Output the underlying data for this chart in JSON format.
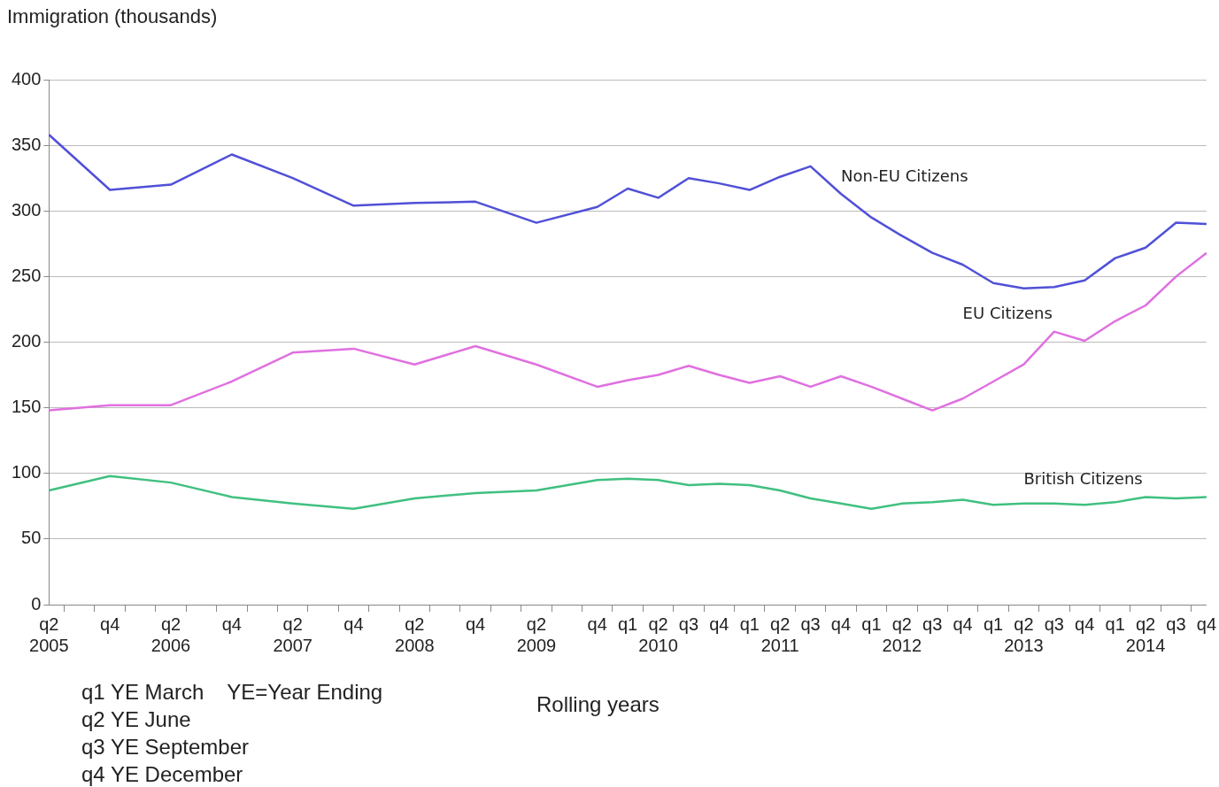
{
  "chart_data": {
    "type": "line",
    "ylabel": "Immigration (thousands)",
    "xlabel": "Rolling years",
    "categories": [
      "q2\n2005",
      null,
      "q4",
      null,
      "q2\n2006",
      null,
      "q4",
      null,
      "q2\n2007",
      null,
      "q4",
      null,
      "q2\n2008",
      null,
      "q4",
      null,
      "q2\n2009",
      null,
      "q4",
      "q1",
      "q2\n2010",
      "q3",
      "q4",
      "q1",
      "q2\n2011",
      "q3",
      "q4",
      "q1",
      "q2\n2012",
      "q3",
      "q4",
      "q1",
      "q2\n2013",
      "q3",
      "q4",
      "q1",
      "q2\n2014",
      "q3",
      "q4"
    ],
    "series": [
      {
        "name": "Non-EU Citizens",
        "color": "#5050d8",
        "values": [
          358,
          null,
          316,
          null,
          320,
          null,
          343,
          null,
          325,
          null,
          304,
          null,
          306,
          null,
          307,
          null,
          291,
          null,
          303,
          317,
          310,
          325,
          321,
          316,
          326,
          334,
          313,
          295,
          281,
          268,
          259,
          245,
          241,
          242,
          247,
          264,
          272,
          291,
          290
        ]
      },
      {
        "name": "EU Citizens",
        "color": "#e070e0",
        "values": [
          148,
          null,
          152,
          null,
          152,
          null,
          170,
          null,
          192,
          null,
          195,
          null,
          183,
          null,
          197,
          null,
          183,
          null,
          166,
          171,
          175,
          182,
          175,
          169,
          174,
          166,
          174,
          166,
          157,
          148,
          157,
          170,
          183,
          208,
          201,
          216,
          228,
          250,
          268
        ]
      },
      {
        "name": "British Citizens",
        "color": "#40c080",
        "values": [
          87,
          null,
          98,
          null,
          93,
          null,
          82,
          null,
          77,
          null,
          73,
          null,
          81,
          null,
          85,
          null,
          87,
          null,
          95,
          96,
          95,
          91,
          92,
          91,
          87,
          81,
          77,
          73,
          77,
          78,
          80,
          76,
          77,
          77,
          76,
          78,
          82,
          81,
          82
        ]
      }
    ],
    "ylim": [
      0,
      400
    ],
    "yticks": [
      0,
      50,
      100,
      150,
      200,
      250,
      300,
      350,
      400
    ],
    "grid": "y",
    "legend": false,
    "marker": "none",
    "line_style": "solid",
    "annotations": [
      "q1 YE March",
      "YE=Year Ending",
      "q2 YE June",
      "q3 YE September",
      "q4 YE December"
    ]
  }
}
